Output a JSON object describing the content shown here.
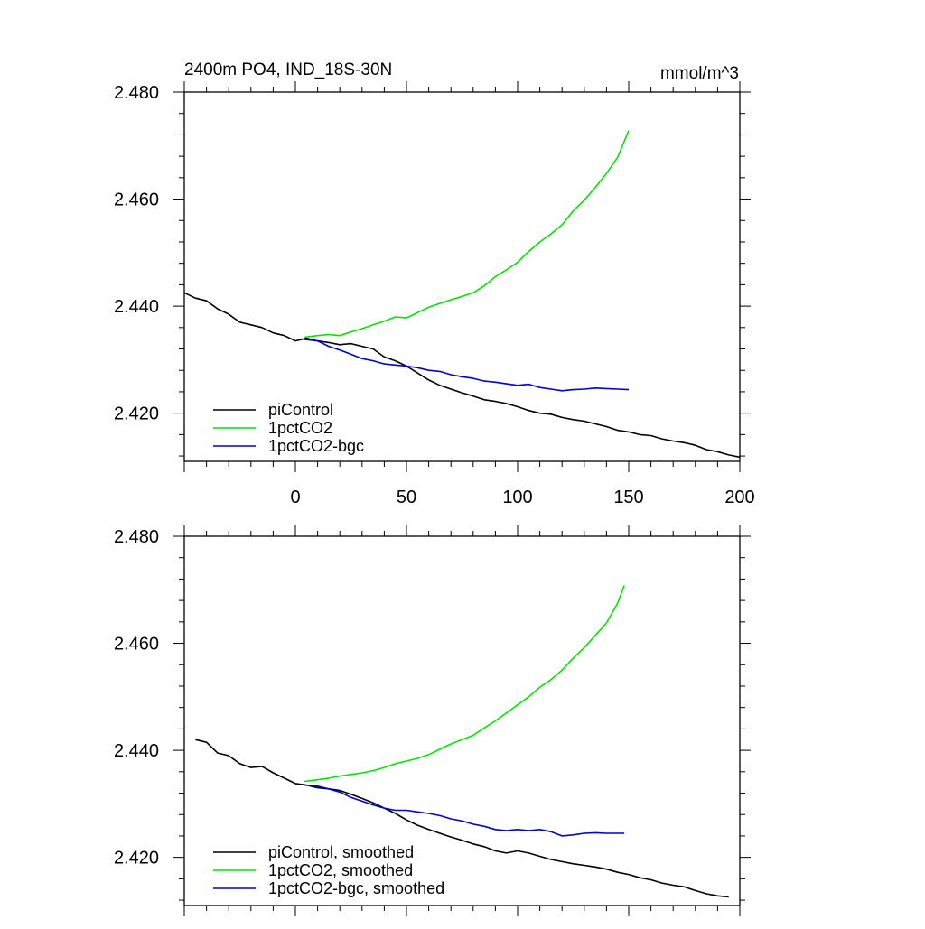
{
  "figure": {
    "title_left": "2400m PO4, IND_18S-30N",
    "title_right": "mmol/m^3"
  },
  "colors": {
    "piControl": "#000000",
    "1pctCO2": "#00e600",
    "1pctCO2-bgc": "#0000d0"
  },
  "chart_data": [
    {
      "type": "line",
      "title": "2400m PO4, IND_18S-30N",
      "units": "mmol/m^3",
      "xlim": [
        -50,
        200
      ],
      "ylim": [
        2.411,
        2.48
      ],
      "x_tick_labels": [
        "0",
        "50",
        "100",
        "150",
        "200"
      ],
      "x_ticks": [
        0,
        50,
        100,
        150,
        200
      ],
      "y_tick_labels": [
        "2.420",
        "2.440",
        "2.460",
        "2.480"
      ],
      "y_ticks": [
        2.42,
        2.44,
        2.46,
        2.48
      ],
      "legend_position": "bottom-left",
      "series": [
        {
          "name": "piControl",
          "color": "#000000",
          "x": [
            -50,
            -45,
            -40,
            -35,
            -30,
            -25,
            -20,
            -15,
            -10,
            -5,
            0,
            5,
            10,
            15,
            20,
            25,
            30,
            35,
            40,
            45,
            50,
            55,
            60,
            65,
            70,
            75,
            80,
            85,
            90,
            95,
            100,
            105,
            110,
            115,
            120,
            125,
            130,
            135,
            140,
            145,
            150,
            155,
            160,
            165,
            170,
            175,
            180,
            185,
            190,
            195,
            200
          ],
          "y": [
            2.4425,
            2.4415,
            2.441,
            2.4395,
            2.4385,
            2.437,
            2.4365,
            2.436,
            2.435,
            2.4345,
            2.4335,
            2.434,
            2.4335,
            2.4332,
            2.4328,
            2.433,
            2.4325,
            2.432,
            2.4305,
            2.4298,
            2.4288,
            2.4275,
            2.4262,
            2.4252,
            2.4245,
            2.4238,
            2.4232,
            2.4225,
            2.4222,
            2.4218,
            2.4212,
            2.4205,
            2.42,
            2.4198,
            2.4192,
            2.4188,
            2.4185,
            2.418,
            2.4175,
            2.4168,
            2.4165,
            2.416,
            2.4158,
            2.4152,
            2.4148,
            2.4145,
            2.414,
            2.4132,
            2.4128,
            2.4122,
            2.4118
          ]
        },
        {
          "name": "1pctCO2",
          "color": "#00e600",
          "x": [
            4,
            10,
            15,
            20,
            25,
            30,
            35,
            40,
            45,
            50,
            55,
            60,
            65,
            70,
            75,
            80,
            85,
            90,
            95,
            100,
            105,
            110,
            115,
            120,
            125,
            130,
            135,
            140,
            145,
            150
          ],
          "y": [
            2.4342,
            2.4345,
            2.4347,
            2.4345,
            2.4352,
            2.4358,
            2.4365,
            2.4372,
            2.438,
            2.4378,
            2.4388,
            2.4398,
            2.4405,
            2.4412,
            2.4418,
            2.4425,
            2.4438,
            2.4455,
            2.4468,
            2.4482,
            2.4502,
            2.452,
            2.4535,
            2.4552,
            2.4578,
            2.4598,
            2.4622,
            2.4648,
            2.4678,
            2.4728
          ]
        },
        {
          "name": "1pctCO2-bgc",
          "color": "#0000d0",
          "x": [
            4,
            10,
            15,
            20,
            25,
            30,
            35,
            40,
            45,
            50,
            55,
            60,
            65,
            70,
            75,
            80,
            85,
            90,
            95,
            100,
            105,
            110,
            115,
            120,
            125,
            130,
            135,
            140,
            145,
            150
          ],
          "y": [
            2.4338,
            2.4335,
            2.4325,
            2.4318,
            2.431,
            2.4302,
            2.4298,
            2.4292,
            2.429,
            2.4288,
            2.4285,
            2.428,
            2.4278,
            2.4272,
            2.4268,
            2.4265,
            2.426,
            2.4258,
            2.4255,
            2.4252,
            2.4254,
            2.4248,
            2.4245,
            2.4242,
            2.4244,
            2.4245,
            2.4247,
            2.4246,
            2.4245,
            2.4244
          ]
        }
      ]
    },
    {
      "type": "line",
      "title": "",
      "xlim": [
        -50,
        200
      ],
      "ylim": [
        2.411,
        2.48
      ],
      "x_ticks": [
        0,
        50,
        100,
        150,
        200
      ],
      "y_tick_labels": [
        "2.420",
        "2.440",
        "2.460",
        "2.480"
      ],
      "y_ticks": [
        2.42,
        2.44,
        2.46,
        2.48
      ],
      "legend_position": "bottom-left",
      "series": [
        {
          "name": "piControl, smoothed",
          "color": "#000000",
          "x": [
            -45,
            -40,
            -35,
            -30,
            -25,
            -20,
            -15,
            -10,
            -5,
            0,
            5,
            10,
            15,
            20,
            25,
            30,
            35,
            40,
            45,
            50,
            55,
            60,
            65,
            70,
            75,
            80,
            85,
            90,
            95,
            100,
            105,
            110,
            115,
            120,
            125,
            130,
            135,
            140,
            145,
            150,
            155,
            160,
            165,
            170,
            175,
            180,
            185,
            190,
            195
          ],
          "y": [
            2.442,
            2.4415,
            2.4395,
            2.439,
            2.4375,
            2.4368,
            2.437,
            2.4358,
            2.4348,
            2.4338,
            2.4335,
            2.433,
            2.4328,
            2.4325,
            2.4318,
            2.431,
            2.4302,
            2.4292,
            2.4282,
            2.427,
            2.426,
            2.4252,
            2.4245,
            2.4238,
            2.4232,
            2.4225,
            2.422,
            2.4212,
            2.4208,
            2.4212,
            2.4208,
            2.4202,
            2.4196,
            2.4192,
            2.4188,
            2.4185,
            2.4182,
            2.4178,
            2.4172,
            2.4168,
            2.4162,
            2.4158,
            2.4152,
            2.4148,
            2.4145,
            2.4138,
            2.4132,
            2.4128,
            2.4126
          ]
        },
        {
          "name": "1pctCO2, smoothed",
          "color": "#00e600",
          "x": [
            4,
            10,
            15,
            20,
            25,
            30,
            35,
            40,
            45,
            50,
            55,
            60,
            65,
            70,
            75,
            80,
            85,
            90,
            95,
            100,
            105,
            110,
            115,
            120,
            125,
            130,
            135,
            140,
            145,
            148
          ],
          "y": [
            2.4342,
            2.4345,
            2.4348,
            2.4352,
            2.4355,
            2.4358,
            2.4362,
            2.4368,
            2.4375,
            2.438,
            2.4385,
            2.4392,
            2.4402,
            2.4412,
            2.442,
            2.4428,
            2.4442,
            2.4455,
            2.447,
            2.4485,
            2.45,
            2.4518,
            2.4532,
            2.455,
            2.4572,
            2.4592,
            2.4615,
            2.4638,
            2.4675,
            2.4708
          ]
        },
        {
          "name": "1pctCO2-bgc, smoothed",
          "color": "#0000d0",
          "x": [
            4,
            10,
            15,
            20,
            25,
            30,
            35,
            40,
            45,
            50,
            55,
            60,
            65,
            70,
            75,
            80,
            85,
            90,
            95,
            100,
            105,
            110,
            115,
            120,
            125,
            130,
            135,
            140,
            145,
            148
          ],
          "y": [
            2.4335,
            2.4333,
            2.4328,
            2.4322,
            2.4312,
            2.4305,
            2.4298,
            2.4292,
            2.4288,
            2.4288,
            2.4285,
            2.4282,
            2.4278,
            2.4272,
            2.4268,
            2.4262,
            2.4258,
            2.4252,
            2.425,
            2.4252,
            2.425,
            2.4252,
            2.4248,
            2.424,
            2.4242,
            2.4245,
            2.4246,
            2.4245,
            2.4245,
            2.4245
          ]
        }
      ]
    }
  ]
}
